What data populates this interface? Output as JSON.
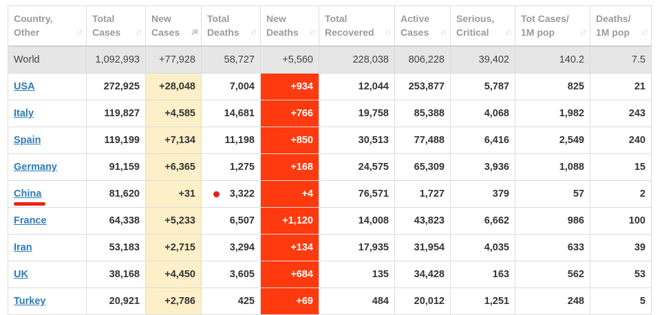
{
  "headers": [
    {
      "line1": "Country,",
      "line2": "Other",
      "sort_icon": "sort-arrows-icon"
    },
    {
      "line1": "Total",
      "line2": "Cases",
      "sort_icon": "sort-arrows-icon"
    },
    {
      "line1": "New",
      "line2": "Cases",
      "sort_icon": "sort-descending-icon"
    },
    {
      "line1": "Total",
      "line2": "Deaths",
      "sort_icon": "sort-arrows-icon"
    },
    {
      "line1": "New",
      "line2": "Deaths",
      "sort_icon": "sort-arrows-icon"
    },
    {
      "line1": "Total",
      "line2": "Recovered",
      "sort_icon": "sort-arrows-icon"
    },
    {
      "line1": "Active",
      "line2": "Cases",
      "sort_icon": "sort-arrows-icon"
    },
    {
      "line1": "Serious,",
      "line2": "Critical",
      "sort_icon": "sort-arrows-icon"
    },
    {
      "line1": "Tot Cases/",
      "line2": "1M pop",
      "sort_icon": "sort-arrows-icon"
    },
    {
      "line1": "Deaths/",
      "line2": "1M pop",
      "sort_icon": "sort-arrows-icon"
    }
  ],
  "world": {
    "name": "World",
    "total_cases": "1,092,993",
    "new_cases": "+77,928",
    "total_deaths": "58,727",
    "new_deaths": "+5,560",
    "total_recovered": "228,038",
    "active_cases": "806,228",
    "serious_critical": "39,402",
    "tot_cases_1m": "140.2",
    "deaths_1m": "7.5"
  },
  "rows": [
    {
      "name": "USA",
      "total_cases": "272,925",
      "new_cases": "+28,048",
      "total_deaths": "7,004",
      "new_deaths": "+934",
      "total_recovered": "12,044",
      "active_cases": "253,877",
      "serious_critical": "5,787",
      "tot_cases_1m": "825",
      "deaths_1m": "21"
    },
    {
      "name": "Italy",
      "total_cases": "119,827",
      "new_cases": "+4,585",
      "total_deaths": "14,681",
      "new_deaths": "+766",
      "total_recovered": "19,758",
      "active_cases": "85,388",
      "serious_critical": "4,068",
      "tot_cases_1m": "1,982",
      "deaths_1m": "243"
    },
    {
      "name": "Spain",
      "total_cases": "119,199",
      "new_cases": "+7,134",
      "total_deaths": "11,198",
      "new_deaths": "+850",
      "total_recovered": "30,513",
      "active_cases": "77,488",
      "serious_critical": "6,416",
      "tot_cases_1m": "2,549",
      "deaths_1m": "240"
    },
    {
      "name": "Germany",
      "total_cases": "91,159",
      "new_cases": "+6,365",
      "total_deaths": "1,275",
      "new_deaths": "+168",
      "total_recovered": "24,575",
      "active_cases": "65,309",
      "serious_critical": "3,936",
      "tot_cases_1m": "1,088",
      "deaths_1m": "15"
    },
    {
      "name": "China",
      "total_cases": "81,620",
      "new_cases": "+31",
      "total_deaths": "3,322",
      "new_deaths": "+4",
      "total_recovered": "76,571",
      "active_cases": "1,727",
      "serious_critical": "379",
      "tot_cases_1m": "57",
      "deaths_1m": "2",
      "annotated": true
    },
    {
      "name": "France",
      "total_cases": "64,338",
      "new_cases": "+5,233",
      "total_deaths": "6,507",
      "new_deaths": "+1,120",
      "total_recovered": "14,008",
      "active_cases": "43,823",
      "serious_critical": "6,662",
      "tot_cases_1m": "986",
      "deaths_1m": "100"
    },
    {
      "name": "Iran",
      "total_cases": "53,183",
      "new_cases": "+2,715",
      "total_deaths": "3,294",
      "new_deaths": "+134",
      "total_recovered": "17,935",
      "active_cases": "31,954",
      "serious_critical": "4,035",
      "tot_cases_1m": "633",
      "deaths_1m": "39"
    },
    {
      "name": "UK",
      "total_cases": "38,168",
      "new_cases": "+4,450",
      "total_deaths": "3,605",
      "new_deaths": "+684",
      "total_recovered": "135",
      "active_cases": "34,428",
      "serious_critical": "163",
      "tot_cases_1m": "562",
      "deaths_1m": "53"
    },
    {
      "name": "Turkey",
      "total_cases": "20,921",
      "new_cases": "+2,786",
      "total_deaths": "425",
      "new_deaths": "+69",
      "total_recovered": "484",
      "active_cases": "20,012",
      "serious_critical": "1,251",
      "tot_cases_1m": "248",
      "deaths_1m": "5"
    }
  ],
  "colors": {
    "link": "#2f7ab8",
    "new_cases_bg": "#fdf0c8",
    "new_deaths_bg": "#ff3a0f",
    "world_row_bg": "#e6e6e6",
    "annotation_red": "#e8231a"
  }
}
